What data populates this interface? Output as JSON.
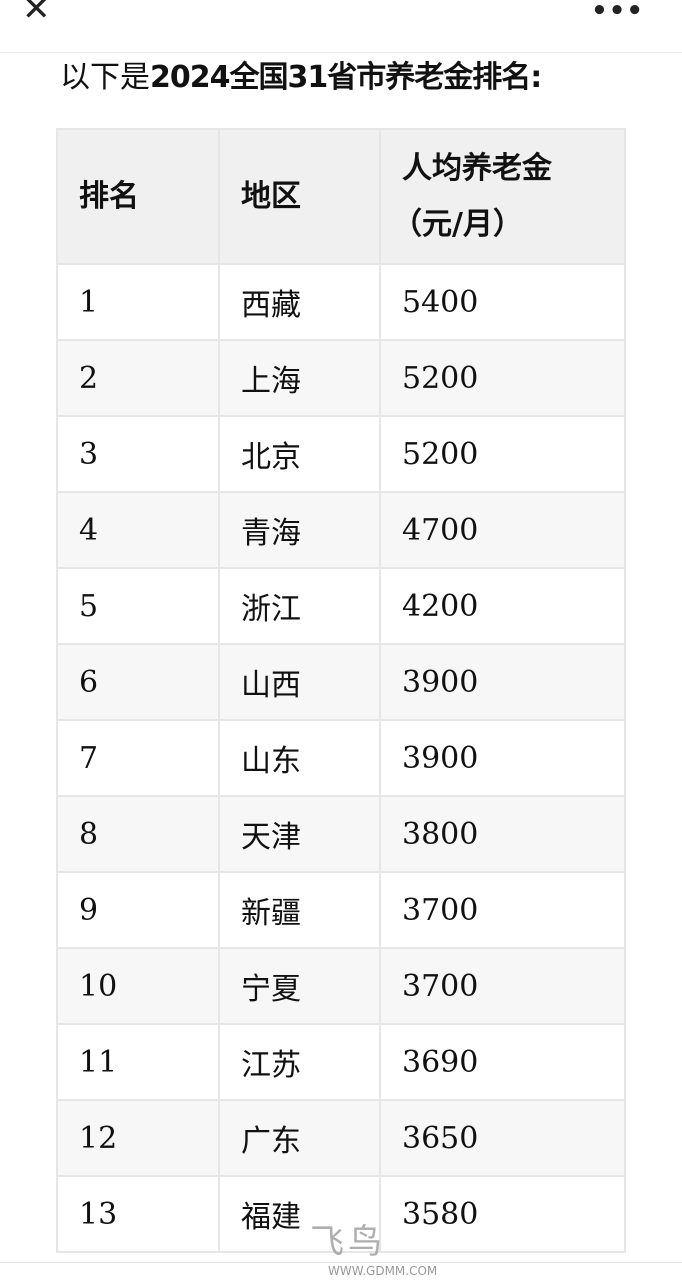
{
  "header": {
    "close_icon": "close-icon",
    "more_icon": "more-icon"
  },
  "article": {
    "title_prefix": "以下是",
    "title_bold": "2024全国31省市养老金排名:"
  },
  "table": {
    "columns": [
      "排名",
      "地区",
      "人均养老金",
      "（元/月）"
    ],
    "rows": [
      {
        "rank": "1",
        "region": "西藏",
        "pension": "5400"
      },
      {
        "rank": "2",
        "region": "上海",
        "pension": "5200"
      },
      {
        "rank": "3",
        "region": "北京",
        "pension": "5200"
      },
      {
        "rank": "4",
        "region": "青海",
        "pension": "4700"
      },
      {
        "rank": "5",
        "region": "浙江",
        "pension": "4200"
      },
      {
        "rank": "6",
        "region": "山西",
        "pension": "3900"
      },
      {
        "rank": "7",
        "region": "山东",
        "pension": "3900"
      },
      {
        "rank": "8",
        "region": "天津",
        "pension": "3800"
      },
      {
        "rank": "9",
        "region": "新疆",
        "pension": "3700"
      },
      {
        "rank": "10",
        "region": "宁夏",
        "pension": "3700"
      },
      {
        "rank": "11",
        "region": "江苏",
        "pension": "3690"
      },
      {
        "rank": "12",
        "region": "广东",
        "pension": "3650"
      },
      {
        "rank": "13",
        "region": "福建",
        "pension": "3580"
      }
    ]
  },
  "watermark": {
    "url": "WWW.GDMM.COM"
  }
}
